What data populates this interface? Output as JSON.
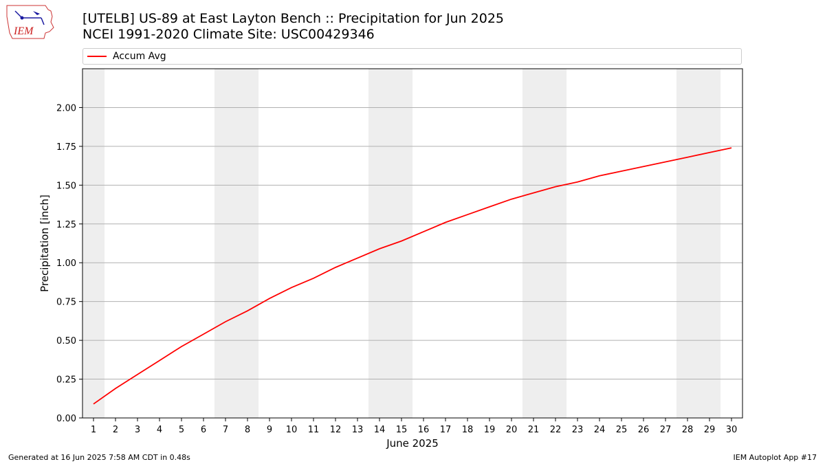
{
  "header": {
    "title_line1": "[UTELB] US-89 at East Layton Bench  :: Precipitation for Jun 2025",
    "title_line2": "NCEI 1991-2020 Climate Site: USC00429346",
    "logo_text": "IEM"
  },
  "legend": {
    "label": "Accum Avg",
    "color": "#ff0000"
  },
  "footer": {
    "left": "Generated at 16 Jun 2025 7:58 AM CDT in 0.48s",
    "right": "IEM Autoplot App #17"
  },
  "chart_data": {
    "type": "line",
    "title": "[UTELB] US-89 at East Layton Bench  :: Precipitation for Jun 2025",
    "subtitle": "NCEI 1991-2020 Climate Site: USC00429346",
    "xlabel": "June 2025",
    "ylabel": "Precipitation [inch]",
    "xlim": [
      0.5,
      30.5
    ],
    "ylim": [
      0,
      2.25
    ],
    "grid": "y",
    "legend_position": "top",
    "x": [
      1,
      2,
      3,
      4,
      5,
      6,
      7,
      8,
      9,
      10,
      11,
      12,
      13,
      14,
      15,
      16,
      17,
      18,
      19,
      20,
      21,
      22,
      23,
      24,
      25,
      26,
      27,
      28,
      29,
      30
    ],
    "x_tick_labels": [
      "1",
      "2",
      "3",
      "4",
      "5",
      "6",
      "7",
      "8",
      "9",
      "10",
      "11",
      "12",
      "13",
      "14",
      "15",
      "16",
      "17",
      "18",
      "19",
      "20",
      "21",
      "22",
      "23",
      "24",
      "25",
      "26",
      "27",
      "28",
      "29",
      "30"
    ],
    "y_ticks": [
      0,
      0.25,
      0.5,
      0.75,
      1.0,
      1.25,
      1.5,
      1.75,
      2.0
    ],
    "y_tick_labels": [
      "0.00",
      "0.25",
      "0.50",
      "0.75",
      "1.00",
      "1.25",
      "1.50",
      "1.75",
      "2.00"
    ],
    "weekend_days": [
      1,
      7,
      8,
      14,
      15,
      21,
      22,
      28,
      29
    ],
    "series": [
      {
        "name": "Accum Avg",
        "color": "#ff0000",
        "values": [
          0.09,
          0.19,
          0.28,
          0.37,
          0.46,
          0.54,
          0.62,
          0.69,
          0.77,
          0.84,
          0.9,
          0.97,
          1.03,
          1.09,
          1.14,
          1.2,
          1.26,
          1.31,
          1.36,
          1.41,
          1.45,
          1.49,
          1.52,
          1.56,
          1.59,
          1.62,
          1.65,
          1.68,
          1.71,
          1.74
        ]
      }
    ]
  }
}
